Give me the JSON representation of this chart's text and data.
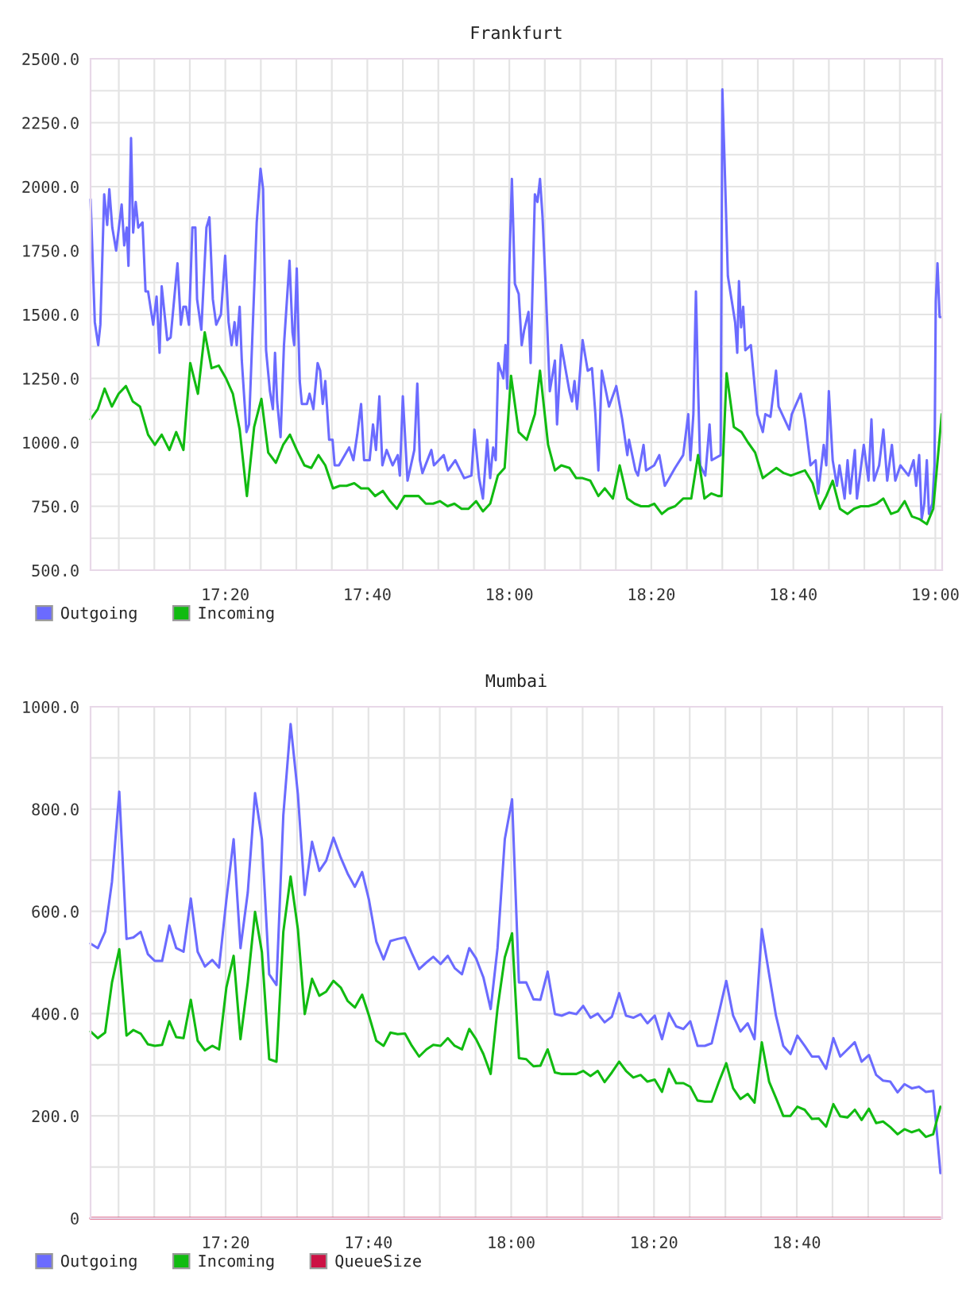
{
  "chart_data": [
    {
      "type": "line",
      "title": "Frankfurt",
      "xlim": [
        17.017,
        19.016
      ],
      "xticks": [
        {
          "value": 17.0833,
          "label": null
        },
        {
          "value": 17.1667,
          "label": null
        },
        {
          "value": 17.25,
          "label": null
        },
        {
          "value": 17.3333,
          "label": "17:20"
        },
        {
          "value": 17.4167,
          "label": null
        },
        {
          "value": 17.5,
          "label": null
        },
        {
          "value": 17.5833,
          "label": null
        },
        {
          "value": 17.6667,
          "label": "17:40"
        },
        {
          "value": 17.75,
          "label": null
        },
        {
          "value": 17.8333,
          "label": null
        },
        {
          "value": 17.9167,
          "label": null
        },
        {
          "value": 18.0,
          "label": "18:00"
        },
        {
          "value": 18.0833,
          "label": null
        },
        {
          "value": 18.1667,
          "label": null
        },
        {
          "value": 18.25,
          "label": null
        },
        {
          "value": 18.3333,
          "label": "18:20"
        },
        {
          "value": 18.4167,
          "label": null
        },
        {
          "value": 18.5,
          "label": null
        },
        {
          "value": 18.5833,
          "label": null
        },
        {
          "value": 18.6667,
          "label": "18:40"
        },
        {
          "value": 18.75,
          "label": null
        },
        {
          "value": 18.8333,
          "label": null
        },
        {
          "value": 18.9167,
          "label": null
        },
        {
          "value": 19.0,
          "label": "19:00"
        }
      ],
      "ylim": [
        500,
        2500
      ],
      "yticks": [
        {
          "value": 500,
          "label": "500.0"
        },
        {
          "value": 625,
          "label": null
        },
        {
          "value": 750,
          "label": "750.0"
        },
        {
          "value": 875,
          "label": null
        },
        {
          "value": 1000,
          "label": "1000.0"
        },
        {
          "value": 1125,
          "label": null
        },
        {
          "value": 1250,
          "label": "1250.0"
        },
        {
          "value": 1375,
          "label": null
        },
        {
          "value": 1500,
          "label": "1500.0"
        },
        {
          "value": 1625,
          "label": null
        },
        {
          "value": 1750,
          "label": "1750.0"
        },
        {
          "value": 1875,
          "label": null
        },
        {
          "value": 2000,
          "label": "2000.0"
        },
        {
          "value": 2125,
          "label": null
        },
        {
          "value": 2250,
          "label": "2250.0"
        },
        {
          "value": 2375,
          "label": null
        },
        {
          "value": 2500,
          "label": "2500.0"
        }
      ],
      "grid": true,
      "legend": "bottom left",
      "series": [
        {
          "name": "Outgoing",
          "color": "#6b6bff",
          "x": [
            17.017,
            17.027,
            17.035,
            17.04,
            17.049,
            17.056,
            17.061,
            17.068,
            17.077,
            17.09,
            17.096,
            17.102,
            17.106,
            17.112,
            17.117,
            17.123,
            17.129,
            17.139,
            17.146,
            17.152,
            17.164,
            17.172,
            17.179,
            17.184,
            17.197,
            17.205,
            17.221,
            17.229,
            17.235,
            17.241,
            17.248,
            17.256,
            17.263,
            17.267,
            17.277,
            17.289,
            17.296,
            17.304,
            17.312,
            17.323,
            17.333,
            17.341,
            17.348,
            17.355,
            17.36,
            17.367,
            17.372,
            17.383,
            17.389,
            17.407,
            17.416,
            17.422,
            17.429,
            17.438,
            17.445,
            17.45,
            17.455,
            17.463,
            17.471,
            17.484,
            17.491,
            17.495,
            17.501,
            17.508,
            17.513,
            17.525,
            17.531,
            17.54,
            17.55,
            17.556,
            17.562,
            17.568,
            17.577,
            17.585,
            17.59,
            17.6,
            17.624,
            17.634,
            17.643,
            17.652,
            17.659,
            17.672,
            17.68,
            17.687,
            17.695,
            17.702,
            17.712,
            17.726,
            17.738,
            17.743,
            17.75,
            17.761,
            17.777,
            17.784,
            17.79,
            17.796,
            17.817,
            17.823,
            17.846,
            17.856,
            17.873,
            17.894,
            17.911,
            17.918,
            17.929,
            17.938,
            17.948,
            17.955,
            17.962,
            17.968,
            17.974,
            17.986,
            17.991,
            17.995,
            18.0,
            18.006,
            18.013,
            18.022,
            18.029,
            18.035,
            18.045,
            18.05,
            18.06,
            18.066,
            18.072,
            18.078,
            18.085,
            18.095,
            18.107,
            18.112,
            18.122,
            18.141,
            18.147,
            18.153,
            18.159,
            18.172,
            18.184,
            18.194,
            18.202,
            18.209,
            18.217,
            18.234,
            18.251,
            18.265,
            18.277,
            18.281,
            18.296,
            18.302,
            18.315,
            18.321,
            18.34,
            18.352,
            18.365,
            18.389,
            18.408,
            18.42,
            18.425,
            18.432,
            18.438,
            18.443,
            18.448,
            18.46,
            18.47,
            18.475,
            18.496,
            18.5,
            18.505,
            18.513,
            18.53,
            18.535,
            18.539,
            18.544,
            18.549,
            18.554,
            18.567,
            18.582,
            18.595,
            18.601,
            18.613,
            18.626,
            18.632,
            18.657,
            18.663,
            18.684,
            18.694,
            18.707,
            18.719,
            18.725,
            18.738,
            18.744,
            18.75,
            18.759,
            18.769,
            18.775,
            18.787,
            18.794,
            18.8,
            18.811,
            18.816,
            18.832,
            18.843,
            18.85,
            18.856,
            18.868,
            18.878,
            18.887,
            18.898,
            18.906,
            18.918,
            18.937,
            18.949,
            18.955,
            18.962,
            18.968,
            18.974,
            18.98,
            18.985,
            18.993,
            18.998,
            19.001,
            19.005,
            19.01,
            19.015
          ],
          "values": [
            1950,
            1470,
            1380,
            1460,
            1970,
            1850,
            1990,
            1840,
            1750,
            1930,
            1770,
            1840,
            1690,
            2190,
            1820,
            1940,
            1840,
            1860,
            1590,
            1590,
            1460,
            1570,
            1350,
            1610,
            1400,
            1410,
            1700,
            1460,
            1530,
            1530,
            1460,
            1840,
            1840,
            1560,
            1440,
            1840,
            1880,
            1560,
            1460,
            1500,
            1730,
            1470,
            1380,
            1470,
            1380,
            1530,
            1320,
            1040,
            1070,
            1860,
            2070,
            1990,
            1360,
            1200,
            1130,
            1350,
            1160,
            1020,
            1380,
            1710,
            1430,
            1380,
            1680,
            1240,
            1150,
            1150,
            1190,
            1130,
            1310,
            1280,
            1150,
            1240,
            1010,
            1010,
            910,
            910,
            980,
            930,
            1030,
            1150,
            930,
            930,
            1070,
            970,
            1180,
            910,
            970,
            910,
            950,
            870,
            1180,
            850,
            970,
            1230,
            930,
            880,
            970,
            910,
            950,
            890,
            930,
            860,
            870,
            1050,
            860,
            780,
            1010,
            860,
            980,
            930,
            1310,
            1250,
            1380,
            1210,
            1690,
            2030,
            1620,
            1580,
            1380,
            1440,
            1510,
            1310,
            1970,
            1940,
            2030,
            1880,
            1620,
            1200,
            1320,
            1070,
            1380,
            1200,
            1160,
            1240,
            1130,
            1400,
            1280,
            1290,
            1110,
            890,
            1280,
            1140,
            1220,
            1090,
            950,
            1010,
            890,
            870,
            990,
            890,
            910,
            950,
            830,
            900,
            950,
            1110,
            930,
            1110,
            1590,
            1220,
            910,
            870,
            1070,
            930,
            950,
            2380,
            2110,
            1650,
            1470,
            1350,
            1630,
            1450,
            1530,
            1360,
            1380,
            1110,
            1040,
            1110,
            1100,
            1280,
            1140,
            1050,
            1110,
            1190,
            1090,
            910,
            930,
            800,
            990,
            910,
            1200,
            930,
            830,
            910,
            780,
            930,
            800,
            970,
            780,
            990,
            850,
            1090,
            850,
            910,
            1050,
            850,
            990,
            850,
            910,
            870,
            930,
            830,
            950,
            700,
            760,
            930,
            720,
            760,
            910,
            1550,
            1700,
            1490,
            1490
          ]
        },
        {
          "name": "Incoming",
          "color": "#11bb11",
          "x": [
            17.017,
            17.034,
            17.05,
            17.067,
            17.083,
            17.1,
            17.116,
            17.133,
            17.152,
            17.168,
            17.184,
            17.202,
            17.218,
            17.235,
            17.251,
            17.269,
            17.285,
            17.301,
            17.318,
            17.335,
            17.351,
            17.367,
            17.384,
            17.401,
            17.418,
            17.434,
            17.452,
            17.469,
            17.485,
            17.501,
            17.519,
            17.535,
            17.552,
            17.568,
            17.586,
            17.602,
            17.618,
            17.636,
            17.652,
            17.669,
            17.685,
            17.703,
            17.72,
            17.736,
            17.754,
            17.77,
            17.787,
            17.804,
            17.821,
            17.837,
            17.855,
            17.871,
            17.888,
            17.904,
            17.922,
            17.938,
            17.955,
            17.973,
            17.989,
            18.004,
            18.022,
            18.041,
            18.06,
            18.072,
            18.091,
            18.107,
            18.122,
            18.141,
            18.157,
            18.172,
            18.19,
            18.209,
            18.224,
            18.243,
            18.259,
            18.277,
            18.294,
            18.309,
            18.327,
            18.34,
            18.358,
            18.373,
            18.389,
            18.408,
            18.427,
            18.443,
            18.458,
            18.474,
            18.49,
            18.498,
            18.51,
            18.527,
            18.545,
            18.56,
            18.577,
            18.595,
            18.611,
            18.627,
            18.644,
            18.661,
            18.677,
            18.694,
            18.712,
            18.729,
            18.744,
            18.759,
            18.776,
            18.794,
            18.809,
            18.825,
            18.843,
            18.862,
            18.878,
            18.896,
            18.912,
            18.928,
            18.945,
            18.962,
            18.98,
            18.995,
            19.015
          ],
          "values": [
            1090,
            1130,
            1210,
            1140,
            1190,
            1220,
            1160,
            1140,
            1030,
            990,
            1030,
            970,
            1040,
            970,
            1310,
            1190,
            1430,
            1290,
            1300,
            1250,
            1190,
            1050,
            790,
            1060,
            1170,
            960,
            920,
            990,
            1030,
            970,
            910,
            900,
            950,
            910,
            820,
            830,
            830,
            840,
            820,
            820,
            790,
            810,
            770,
            740,
            790,
            790,
            790,
            760,
            760,
            770,
            750,
            760,
            740,
            740,
            770,
            730,
            760,
            870,
            900,
            1260,
            1040,
            1010,
            1110,
            1280,
            990,
            890,
            910,
            900,
            860,
            860,
            850,
            790,
            820,
            780,
            910,
            780,
            760,
            750,
            750,
            760,
            720,
            740,
            750,
            780,
            780,
            950,
            780,
            800,
            790,
            790,
            1270,
            1060,
            1040,
            1000,
            960,
            860,
            880,
            900,
            880,
            870,
            880,
            890,
            840,
            740,
            790,
            850,
            740,
            720,
            740,
            750,
            750,
            760,
            780,
            720,
            730,
            770,
            710,
            700,
            680,
            740,
            1110
          ]
        }
      ]
    },
    {
      "type": "line",
      "title": "Mumbai",
      "x": [
        17.018,
        17.035,
        17.052,
        17.068,
        17.085,
        17.102,
        17.118,
        17.135,
        17.152,
        17.168,
        17.185,
        17.202,
        17.218,
        17.235,
        17.252,
        17.268,
        17.285,
        17.302,
        17.318,
        17.335,
        17.352,
        17.368,
        17.385,
        17.402,
        17.418,
        17.435,
        17.452,
        17.468,
        17.485,
        17.502,
        17.518,
        17.535,
        17.552,
        17.568,
        17.585,
        17.602,
        17.618,
        17.635,
        17.652,
        17.668,
        17.685,
        17.702,
        17.718,
        17.735,
        17.752,
        17.768,
        17.785,
        17.802,
        17.818,
        17.835,
        17.852,
        17.868,
        17.885,
        17.902,
        17.918,
        17.935,
        17.952,
        17.968,
        17.985,
        18.002,
        18.018,
        18.035,
        18.052,
        18.068,
        18.085,
        18.102,
        18.118,
        18.135,
        18.152,
        18.168,
        18.185,
        18.202,
        18.218,
        18.235,
        18.252,
        18.268,
        18.285,
        18.302,
        18.318,
        18.335,
        18.352,
        18.368,
        18.385,
        18.402,
        18.418,
        18.435,
        18.452,
        18.468,
        18.485,
        18.502,
        18.518,
        18.535,
        18.552,
        18.568,
        18.585,
        18.602,
        18.618,
        18.635,
        18.652,
        18.668,
        18.685,
        18.702,
        18.718,
        18.735,
        18.752,
        18.768,
        18.785,
        18.802,
        18.818,
        18.835,
        18.852,
        18.868,
        18.885,
        18.902,
        18.918,
        18.935,
        18.952,
        18.968,
        18.985,
        19.002
      ],
      "xlim": [
        17.018,
        19.006
      ],
      "xticks": [
        {
          "value": 17.0833,
          "label": null
        },
        {
          "value": 17.1667,
          "label": null
        },
        {
          "value": 17.25,
          "label": null
        },
        {
          "value": 17.3333,
          "label": "17:20"
        },
        {
          "value": 17.4167,
          "label": null
        },
        {
          "value": 17.5,
          "label": null
        },
        {
          "value": 17.5833,
          "label": null
        },
        {
          "value": 17.6667,
          "label": "17:40"
        },
        {
          "value": 17.75,
          "label": null
        },
        {
          "value": 17.8333,
          "label": null
        },
        {
          "value": 17.9167,
          "label": null
        },
        {
          "value": 18.0,
          "label": "18:00"
        },
        {
          "value": 18.0833,
          "label": null
        },
        {
          "value": 18.1667,
          "label": null
        },
        {
          "value": 18.25,
          "label": null
        },
        {
          "value": 18.3333,
          "label": "18:20"
        },
        {
          "value": 18.4167,
          "label": null
        },
        {
          "value": 18.5,
          "label": null
        },
        {
          "value": 18.5833,
          "label": null
        },
        {
          "value": 18.6667,
          "label": "18:40"
        },
        {
          "value": 18.75,
          "label": null
        },
        {
          "value": 18.8333,
          "label": null
        },
        {
          "value": 18.9167,
          "label": null
        }
      ],
      "ylim": [
        0,
        1000
      ],
      "yticks": [
        0,
        {
          "value": 100,
          "label": null
        },
        {
          "value": 200,
          "label": "200.0"
        },
        {
          "value": 300,
          "label": null
        },
        {
          "value": 400,
          "label": "400.0"
        },
        {
          "value": 500,
          "label": null
        },
        {
          "value": 600,
          "label": "600.0"
        },
        {
          "value": 700,
          "label": null
        },
        {
          "value": 800,
          "label": "800.0"
        },
        {
          "value": 900,
          "label": null
        },
        {
          "value": 1000,
          "label": "1000.0"
        }
      ],
      "grid": true,
      "legend": "bottom left",
      "series": [
        {
          "name": "Outgoing",
          "color": "#6b6bff",
          "values": [
            537,
            528,
            560,
            658,
            834,
            546,
            549,
            560,
            516,
            503,
            503,
            572,
            528,
            521,
            625,
            521,
            492,
            505,
            490,
            622,
            741,
            528,
            637,
            831,
            741,
            477,
            456,
            788,
            966,
            829,
            632,
            736,
            679,
            699,
            744,
            705,
            674,
            648,
            677,
            622,
            541,
            506,
            542,
            546,
            549,
            518,
            487,
            500,
            511,
            497,
            513,
            489,
            477,
            528,
            508,
            471,
            409,
            528,
            741,
            819,
            461,
            461,
            428,
            427,
            482,
            399,
            396,
            402,
            399,
            415,
            392,
            400,
            383,
            394,
            440,
            396,
            392,
            399,
            381,
            396,
            350,
            401,
            375,
            370,
            385,
            337,
            337,
            342,
            402,
            464,
            396,
            365,
            381,
            350,
            565,
            477,
            396,
            337,
            321,
            357,
            337,
            316,
            316,
            292,
            352,
            316,
            330,
            344,
            306,
            319,
            280,
            269,
            267,
            246,
            262,
            254,
            257,
            247,
            249,
            88
          ]
        },
        {
          "name": "Incoming",
          "color": "#11bb11",
          "values": [
            365,
            352,
            363,
            461,
            526,
            357,
            368,
            361,
            340,
            337,
            339,
            385,
            354,
            352,
            427,
            347,
            328,
            337,
            330,
            451,
            513,
            350,
            461,
            599,
            520,
            311,
            306,
            560,
            668,
            565,
            399,
            468,
            435,
            443,
            464,
            451,
            425,
            412,
            437,
            396,
            347,
            337,
            363,
            360,
            361,
            337,
            316,
            330,
            339,
            337,
            352,
            337,
            330,
            370,
            350,
            321,
            282,
            410,
            510,
            557,
            313,
            311,
            297,
            298,
            330,
            285,
            282,
            282,
            282,
            288,
            278,
            288,
            266,
            285,
            306,
            288,
            275,
            280,
            267,
            271,
            247,
            292,
            264,
            264,
            257,
            230,
            228,
            228,
            267,
            303,
            254,
            233,
            243,
            226,
            344,
            267,
            235,
            200,
            200,
            218,
            212,
            194,
            195,
            179,
            223,
            199,
            197,
            212,
            192,
            214,
            186,
            189,
            178,
            164,
            174,
            168,
            173,
            159,
            164,
            218
          ]
        },
        {
          "name": "QueueSize",
          "color": "#cc1144",
          "x": [
            17.018,
            19.002
          ],
          "values": [
            0,
            0
          ]
        }
      ]
    }
  ]
}
